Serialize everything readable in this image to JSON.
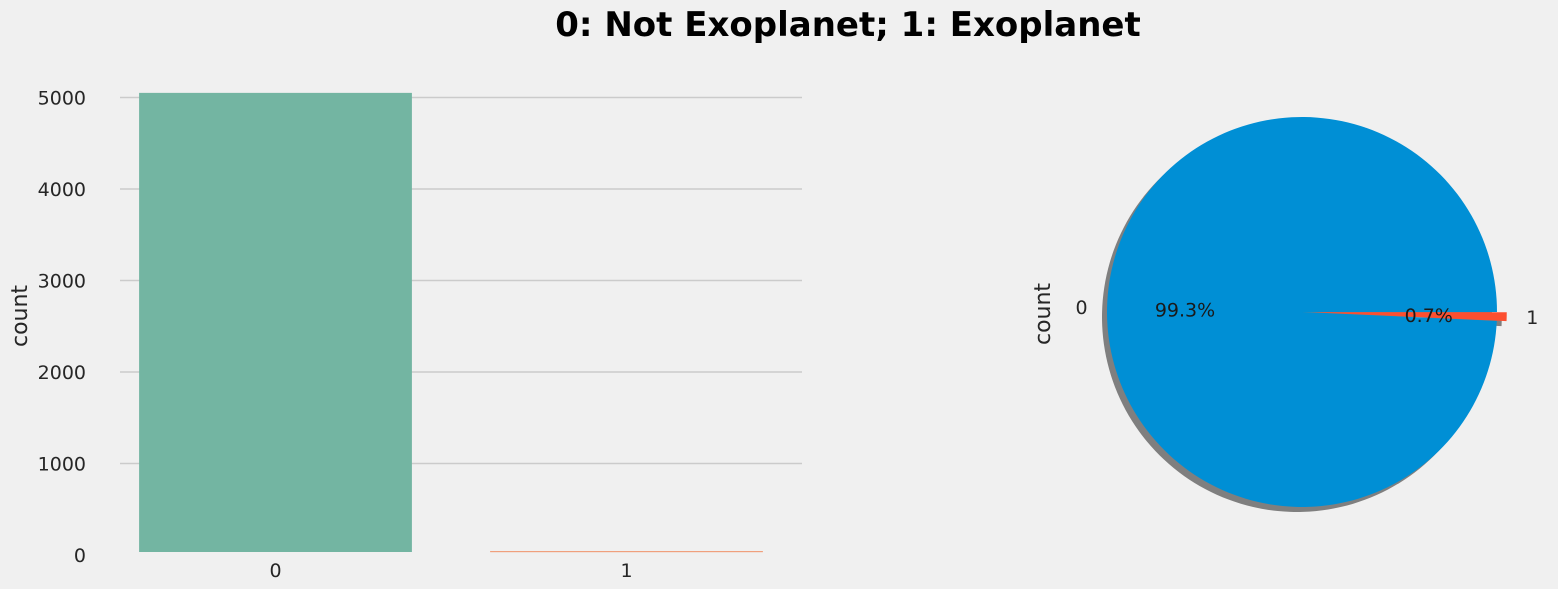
{
  "title": "0: Not Exoplanet; 1: Exoplanet",
  "chart_data": [
    {
      "type": "bar",
      "categories": [
        "0",
        "1"
      ],
      "values": [
        5050,
        37
      ],
      "colors": [
        "#73b5a2",
        "#f0a07d"
      ],
      "xlabel": "",
      "ylabel": "count",
      "ylim": [
        0,
        5300
      ],
      "yticks": [
        0,
        1000,
        2000,
        3000,
        4000,
        5000
      ],
      "grid": "horizontal"
    },
    {
      "type": "pie",
      "labels": [
        "0",
        "1"
      ],
      "values": [
        5050,
        37
      ],
      "percent_labels": [
        "99.3%",
        "0.7%"
      ],
      "colors": [
        "#008fd5",
        "#fc4f30"
      ],
      "explode": [
        0,
        0.05
      ],
      "shadow": true,
      "ylabel": "count"
    }
  ]
}
